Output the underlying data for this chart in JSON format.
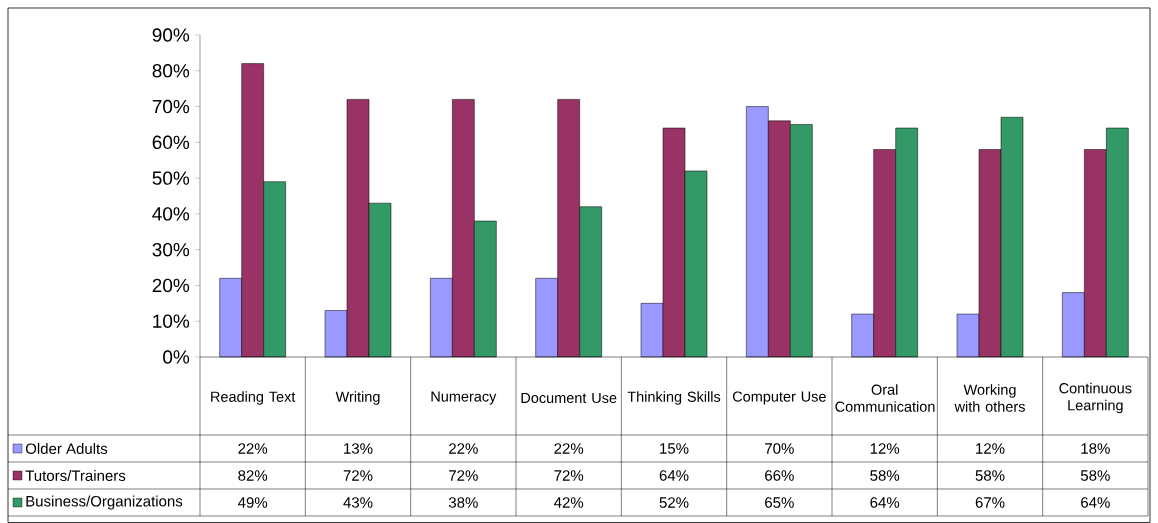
{
  "chart_data": {
    "type": "bar",
    "categories": [
      "Reading Text",
      "Writing",
      "Numeracy",
      "Document Use",
      "Thinking Skills",
      "Computer Use",
      "Oral Communication",
      "Working with others",
      "Continuous Learning"
    ],
    "series": [
      {
        "name": "Older Adults",
        "color": "#9999ff",
        "values": [
          22,
          13,
          22,
          22,
          15,
          70,
          12,
          12,
          18
        ],
        "value_labels": [
          "22%",
          "13%",
          "22%",
          "22%",
          "15%",
          "70%",
          "12%",
          "12%",
          "18%"
        ]
      },
      {
        "name": "Tutors/Trainers",
        "color": "#993366",
        "values": [
          82,
          72,
          72,
          72,
          64,
          66,
          58,
          58,
          58
        ],
        "value_labels": [
          "82%",
          "72%",
          "72%",
          "72%",
          "64%",
          "66%",
          "58%",
          "58%",
          "58%"
        ]
      },
      {
        "name": "Business/Organizations",
        "color": "#339966",
        "values": [
          49,
          43,
          38,
          42,
          52,
          65,
          64,
          67,
          64
        ],
        "value_labels": [
          "49%",
          "43%",
          "38%",
          "42%",
          "52%",
          "65%",
          "64%",
          "67%",
          "64%"
        ]
      }
    ],
    "ylim": [
      0,
      90
    ],
    "yticks": [
      {
        "value": 0,
        "label": "0%"
      },
      {
        "value": 10,
        "label": "10%"
      },
      {
        "value": 20,
        "label": "20%"
      },
      {
        "value": 30,
        "label": "30%"
      },
      {
        "value": 40,
        "label": "40%"
      },
      {
        "value": 50,
        "label": "50%"
      },
      {
        "value": 60,
        "label": "60%"
      },
      {
        "value": 70,
        "label": "70%"
      },
      {
        "value": 80,
        "label": "80%"
      },
      {
        "value": 90,
        "label": "90%"
      }
    ],
    "grid": false,
    "legend": "bottom"
  }
}
